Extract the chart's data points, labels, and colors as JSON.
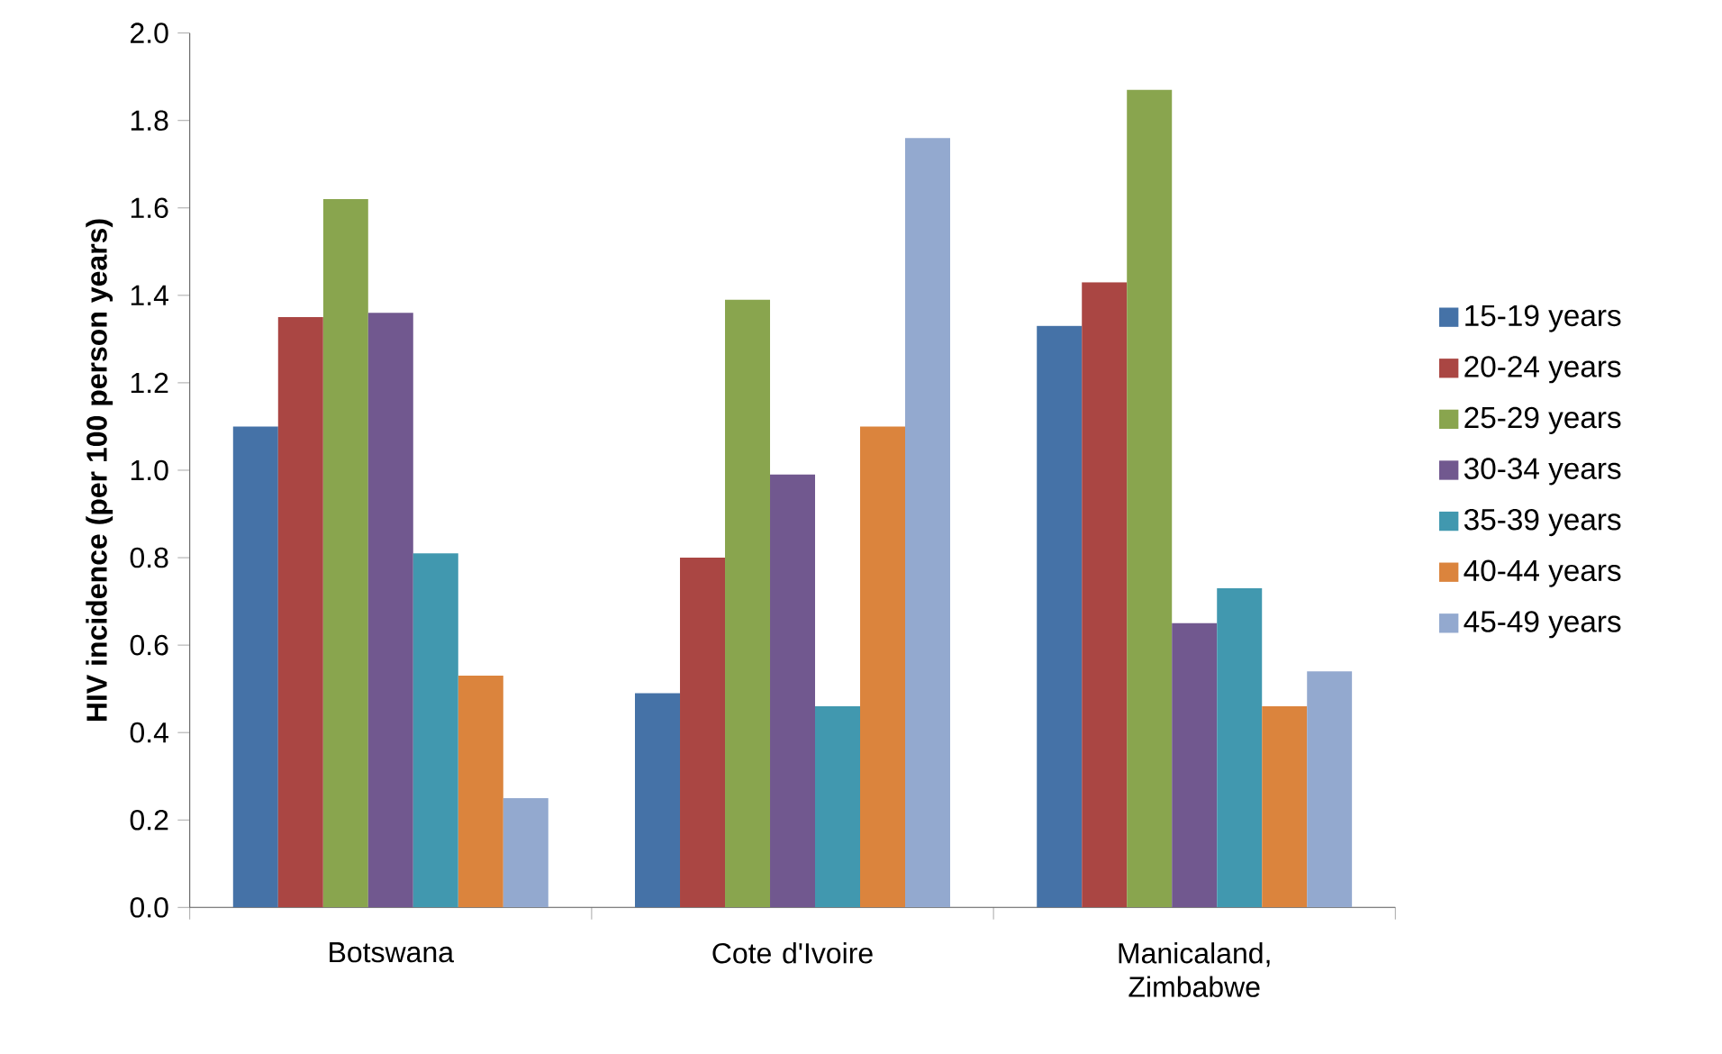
{
  "chart_data": {
    "type": "bar",
    "ylabel": "HIV incidence (per 100 person years)",
    "categories": [
      "Botswana",
      "Cote d'Ivoire",
      "Manicaland, Zimbabwe"
    ],
    "series": [
      {
        "name": "15-19 years",
        "color": "#4572a7",
        "values": [
          1.1,
          0.49,
          1.33
        ]
      },
      {
        "name": "20-24 years",
        "color": "#aa4643",
        "values": [
          1.35,
          0.8,
          1.43
        ]
      },
      {
        "name": "25-29 years",
        "color": "#89a54e",
        "values": [
          1.62,
          1.39,
          1.87
        ]
      },
      {
        "name": "30-34 years",
        "color": "#71588f",
        "values": [
          1.36,
          0.99,
          0.65
        ]
      },
      {
        "name": "35-39 years",
        "color": "#4198af",
        "values": [
          0.81,
          0.46,
          0.73
        ]
      },
      {
        "name": "40-44 years",
        "color": "#db843d",
        "values": [
          0.53,
          1.1,
          0.46
        ]
      },
      {
        "name": "45-49 years",
        "color": "#93a9cf",
        "values": [
          0.25,
          1.76,
          0.54
        ]
      }
    ],
    "ylim": [
      0,
      2.0
    ],
    "yticks": [
      {
        "value": 0,
        "label": "0.0"
      },
      {
        "value": 0.2,
        "label": "0.2"
      },
      {
        "value": 0.4,
        "label": "0.4"
      },
      {
        "value": 0.6,
        "label": "0.6"
      },
      {
        "value": 0.8,
        "label": "0.8"
      },
      {
        "value": 1.0,
        "label": "1.0"
      },
      {
        "value": 1.2,
        "label": "1.2"
      },
      {
        "value": 1.4,
        "label": "1.4"
      },
      {
        "value": 1.6,
        "label": "1.6"
      },
      {
        "value": 1.8,
        "label": "1.8"
      },
      {
        "value": 2.0,
        "label": "2.0"
      }
    ],
    "grid": false,
    "legend": "right"
  }
}
